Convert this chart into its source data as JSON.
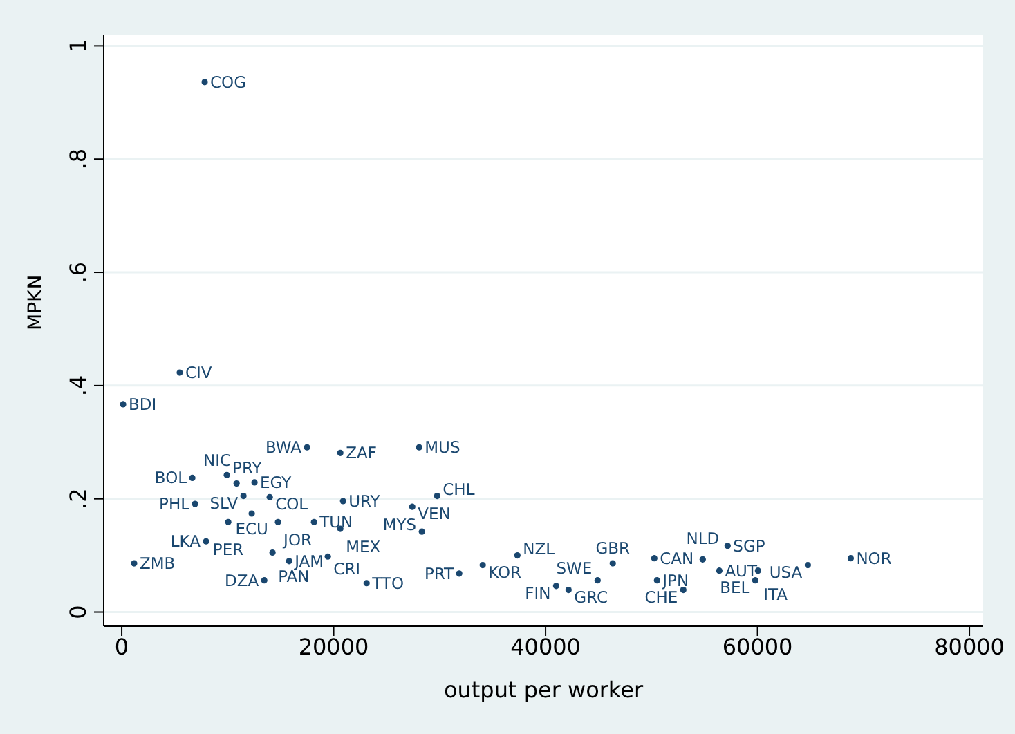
{
  "chart_data": {
    "type": "scatter",
    "xlabel": "output per worker",
    "ylabel": "MPKN",
    "xlim": [
      -1700,
      81300
    ],
    "ylim": [
      -0.025,
      1.02
    ],
    "xticks": [
      0,
      20000,
      40000,
      60000,
      80000
    ],
    "yticks": [
      0,
      {
        "value": 0.2,
        "label": ".2"
      },
      {
        "value": 0.4,
        "label": ".4"
      },
      {
        "value": 0.6,
        "label": ".6"
      },
      {
        "value": 0.8,
        "label": ".8"
      },
      1
    ],
    "grid": "y",
    "marker": "circle",
    "series": [
      {
        "color": "#1a476f",
        "x": [
          7830,
          5480,
          130,
          17490,
          20630,
          28070,
          6660,
          9920,
          10840,
          12530,
          11490,
          13970,
          6920,
          20890,
          27420,
          29770,
          12270,
          10050,
          14750,
          18150,
          20630,
          28330,
          7960,
          1170,
          14230,
          15800,
          19450,
          13450,
          23110,
          31850,
          34070,
          37340,
          41000,
          42170,
          44910,
          46340,
          50260,
          54830,
          57180,
          64750,
          68800,
          60050,
          59790,
          53000,
          50520,
          56400
        ],
        "values": [
          0.936,
          0.423,
          0.367,
          0.291,
          0.281,
          0.291,
          0.237,
          0.242,
          0.227,
          0.229,
          0.205,
          0.203,
          0.191,
          0.196,
          0.186,
          0.205,
          0.174,
          0.159,
          0.159,
          0.159,
          0.147,
          0.142,
          0.125,
          0.086,
          0.105,
          0.09,
          0.098,
          0.056,
          0.051,
          0.068,
          0.083,
          0.1,
          0.046,
          0.039,
          0.056,
          0.086,
          0.095,
          0.093,
          0.117,
          0.083,
          0.095,
          0.073,
          0.056,
          0.039,
          0.056,
          0.073
        ],
        "value_labels": [
          "COG",
          "CIV",
          "BDI",
          "BWA",
          "ZAF",
          "MUS",
          "BOL",
          "PRY",
          "NIC",
          "EGY",
          "SLV",
          "COL",
          "PHL",
          "URY",
          "VEN",
          "CHL",
          "ECU",
          "PER",
          "JOR",
          "TUN",
          "MEX",
          "MYS",
          "LKA",
          "ZMB",
          "PAN",
          "JAM",
          "CRI",
          "DZA",
          "TTO",
          "PRT",
          "KOR",
          "NZL",
          "FIN",
          "GRC",
          "SWE",
          "GBR",
          "CAN",
          "NLD",
          "SGP",
          "USA",
          "NOR",
          "ITA",
          "BEL",
          "CHE",
          "JPN",
          "AUT"
        ]
      }
    ]
  }
}
